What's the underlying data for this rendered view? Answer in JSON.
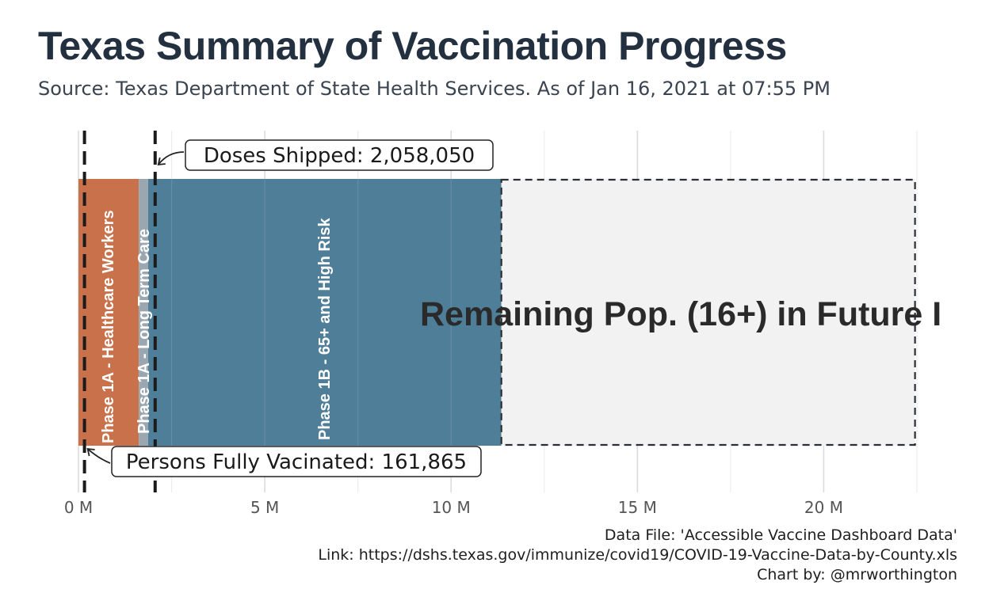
{
  "title": "Texas Summary of Vaccination Progress",
  "subtitle": "Source: Texas Department of State Health Services. As of Jan 16, 2021 at 07:55 PM",
  "caption": {
    "line1": "Data File: 'Accessible Vaccine Dashboard Data'",
    "line2": "Link: https://dshs.texas.gov/immunize/covid19/COVID-19-Vaccine-Data-by-County.xls",
    "line3": "Chart by: @mrworthington"
  },
  "chart_data": {
    "type": "bar",
    "orientation": "horizontal-stacked",
    "xlim": [
      0,
      22.5
    ],
    "x_unit": "M",
    "grid": true,
    "x_ticks": [
      {
        "value": 0,
        "label": "0 M"
      },
      {
        "value": 5,
        "label": "5 M"
      },
      {
        "value": 10,
        "label": "10 M"
      },
      {
        "value": 15,
        "label": "15 M"
      },
      {
        "value": 20,
        "label": "20 M"
      }
    ],
    "segments": [
      {
        "label": "Phase 1A - Healthcare Workers",
        "start": 0,
        "end": 1.62,
        "color": "#c8714a"
      },
      {
        "label": "Phase 1A - Long Term Care",
        "start": 1.62,
        "end": 1.87,
        "color": "#9ba7b0"
      },
      {
        "label": "Phase 1B - 65+ and High Risk",
        "start": 1.87,
        "end": 11.35,
        "color": "#4f7e99"
      },
      {
        "label": "Remaining Pop. (16+) in Future I",
        "start": 11.35,
        "end": 22.45,
        "color": "#f2f2f2"
      }
    ],
    "reference_lines": [
      {
        "label": "Doses Shipped: 2,058,050",
        "value": 2.05805,
        "annotation_position": "top"
      },
      {
        "label": "Persons Fully Vacinated: 161,865",
        "value": 0.161865,
        "annotation_position": "bottom"
      }
    ]
  }
}
